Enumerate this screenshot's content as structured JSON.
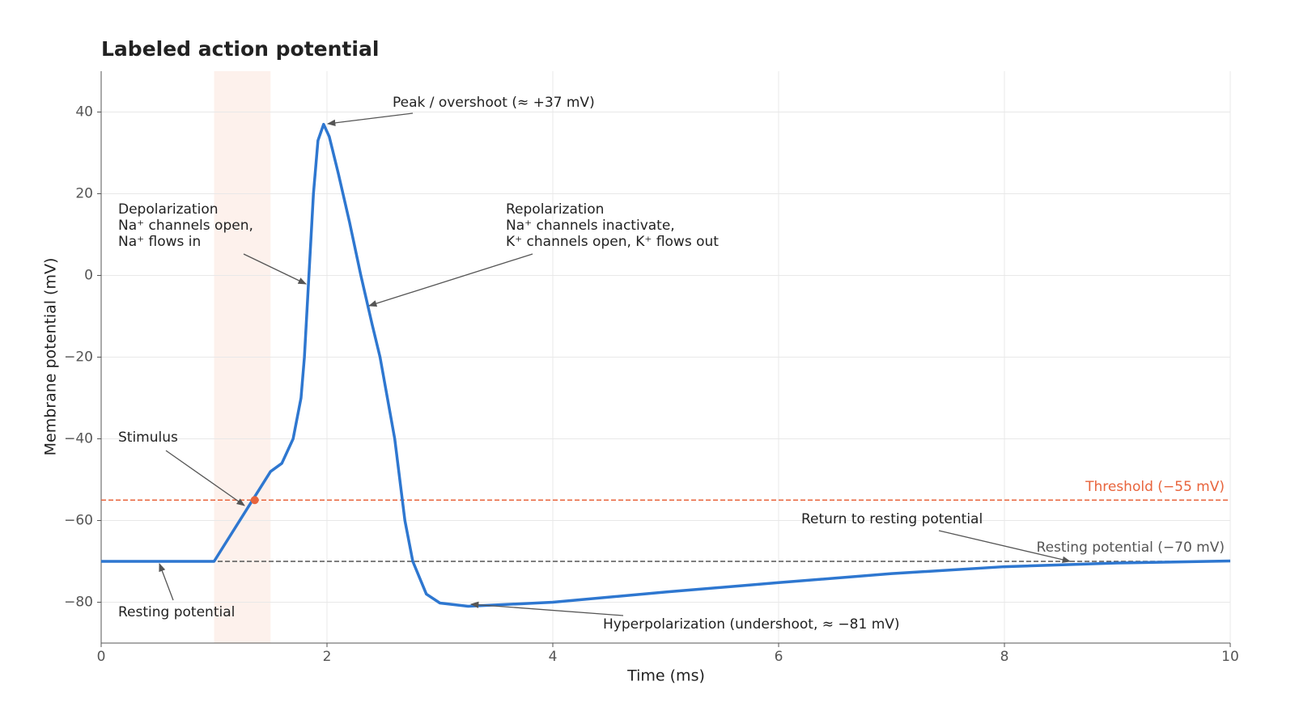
{
  "chart_data": {
    "type": "line",
    "title": "Labeled action potential",
    "xlabel": "Time (ms)",
    "ylabel": "Membrane potential (mV)",
    "xlim": [
      0,
      10
    ],
    "ylim": [
      -90,
      50
    ],
    "xticks": [
      0,
      2,
      4,
      6,
      8,
      10
    ],
    "yticks": [
      {
        "value": -80,
        "label": "−80"
      },
      {
        "value": -60,
        "label": "−60"
      },
      {
        "value": -40,
        "label": "−40"
      },
      {
        "value": -20,
        "label": "−20"
      },
      0,
      20,
      40
    ],
    "grid": true,
    "x": [
      0,
      1.0,
      1.25,
      1.5,
      1.6,
      1.7,
      1.77,
      1.8,
      1.84,
      1.88,
      1.92,
      1.97,
      2.02,
      2.1,
      2.2,
      2.3,
      2.4,
      2.47,
      2.6,
      2.69,
      2.76,
      2.88,
      3.0,
      3.25,
      4,
      5,
      6,
      7,
      8,
      9,
      10
    ],
    "series": [
      {
        "name": "Membrane potential",
        "color": "#2e77d0",
        "values": [
          -70,
          -70,
          -59,
          -48,
          -46,
          -40,
          -30,
          -20,
          0,
          20,
          33,
          37,
          34,
          25,
          13,
          0,
          -12,
          -20,
          -40,
          -60,
          -70,
          -78,
          -80.2,
          -81,
          -80,
          -77.5,
          -75.2,
          -73,
          -71.3,
          -70.4,
          -69.9
        ]
      }
    ],
    "shade": {
      "range": [
        1.0,
        1.5
      ],
      "color": "#fdf1ec"
    },
    "hlines": [
      {
        "value": -55,
        "label": "Threshold (−55 mV)",
        "color": "#e8643c"
      },
      {
        "value": -70,
        "label": "Resting potential (−70 mV)",
        "color": "#555555"
      }
    ],
    "markers": [
      {
        "x": 1.36,
        "y": -55,
        "color": "#e8643c"
      }
    ],
    "annotations": [
      {
        "lines": [
          "Peak / overshoot (≈ +37 mV)"
        ]
      },
      {
        "lines": [
          "Depolarization",
          "Na⁺ channels open,",
          "Na⁺ flows in"
        ]
      },
      {
        "lines": [
          "Repolarization",
          "Na⁺ channels inactivate,",
          "K⁺ channels open, K⁺ flows out"
        ]
      },
      {
        "lines": [
          "Stimulus"
        ]
      },
      {
        "lines": [
          "Resting potential"
        ]
      },
      {
        "lines": [
          "Hyperpolarization (undershoot, ≈ −81 mV)"
        ]
      },
      {
        "lines": [
          "Return to resting potential"
        ]
      }
    ]
  }
}
